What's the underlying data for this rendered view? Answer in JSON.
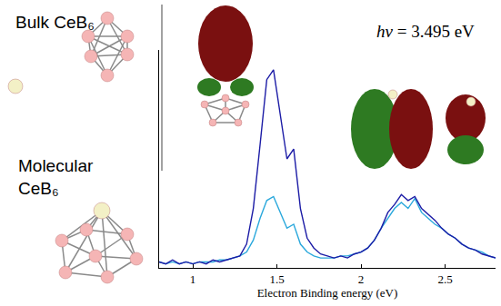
{
  "chart_data": {
    "type": "line",
    "annotations": [
      "Bulk CeB₆",
      "Molecular CeB₆",
      "hν = 3.495 eV"
    ],
    "x_label": "Electron Binding energy (eV)",
    "x": [
      0.8,
      0.84,
      0.88,
      0.92,
      0.96,
      1.0,
      1.04,
      1.08,
      1.12,
      1.16,
      1.2,
      1.24,
      1.28,
      1.32,
      1.36,
      1.4,
      1.44,
      1.48,
      1.52,
      1.56,
      1.6,
      1.64,
      1.68,
      1.72,
      1.76,
      1.8,
      1.84,
      1.88,
      1.92,
      1.96,
      2.0,
      2.04,
      2.08,
      2.12,
      2.16,
      2.2,
      2.24,
      2.28,
      2.32,
      2.36,
      2.4,
      2.44,
      2.48,
      2.52,
      2.56,
      2.6,
      2.64,
      2.68,
      2.72,
      2.76,
      2.8
    ],
    "series": [
      {
        "color": "#1c1ca6",
        "values": [
          0.03,
          0.02,
          0.04,
          0.02,
          0.03,
          0.02,
          0.03,
          0.02,
          0.04,
          0.03,
          0.04,
          0.05,
          0.06,
          0.12,
          0.3,
          0.62,
          0.95,
          1.0,
          0.78,
          0.55,
          0.6,
          0.3,
          0.15,
          0.1,
          0.07,
          0.06,
          0.05,
          0.06,
          0.05,
          0.07,
          0.08,
          0.1,
          0.14,
          0.2,
          0.28,
          0.32,
          0.37,
          0.34,
          0.36,
          0.3,
          0.27,
          0.24,
          0.2,
          0.17,
          0.15,
          0.12,
          0.1,
          0.09,
          0.07,
          0.06,
          0.05
        ]
      },
      {
        "color": "#2aa8dc",
        "values": [
          0.03,
          0.02,
          0.03,
          0.02,
          0.03,
          0.02,
          0.03,
          0.03,
          0.03,
          0.04,
          0.04,
          0.05,
          0.06,
          0.08,
          0.14,
          0.25,
          0.34,
          0.36,
          0.28,
          0.2,
          0.22,
          0.12,
          0.08,
          0.06,
          0.05,
          0.05,
          0.05,
          0.06,
          0.06,
          0.07,
          0.08,
          0.1,
          0.14,
          0.2,
          0.25,
          0.3,
          0.33,
          0.3,
          0.35,
          0.28,
          0.25,
          0.22,
          0.2,
          0.17,
          0.15,
          0.12,
          0.1,
          0.09,
          0.08,
          0.06,
          0.05
        ]
      }
    ],
    "xlim": [
      0.8,
      2.8
    ],
    "xticks": [
      1,
      1.5,
      2,
      2.5
    ],
    "ylim": [
      0,
      1.1
    ],
    "tick_labels": "x",
    "grid": false
  }
}
